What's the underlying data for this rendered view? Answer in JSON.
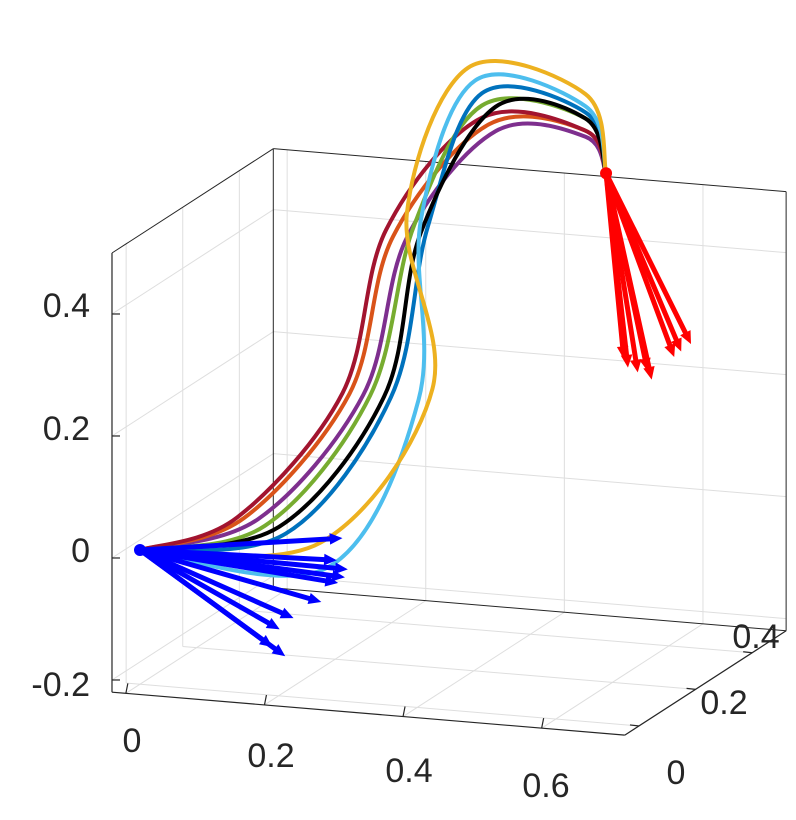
{
  "chart_data": {
    "type": "line3d",
    "title": "",
    "xlabel": "",
    "ylabel": "",
    "zlabel": "",
    "xlim": [
      -0.02,
      0.72
    ],
    "ylim": [
      -0.05,
      0.52
    ],
    "zlim": [
      -0.22,
      0.5
    ],
    "grid": true,
    "box": true,
    "x_ticks": [
      "0",
      "0.2",
      "0.4",
      "0.6"
    ],
    "y_ticks": [
      "0",
      "0.2",
      "0.4"
    ],
    "z_ticks": [
      "-0.2",
      "0",
      "0.2",
      "0.4"
    ],
    "x_tick_values": [
      0,
      0.2,
      0.4,
      0.6
    ],
    "y_tick_values": [
      0,
      0.2,
      0.4
    ],
    "z_tick_values": [
      -0.2,
      0,
      0.2,
      0.4
    ],
    "colors": {
      "start_arrows": "#0000ff",
      "end_arrows": "#ff0000",
      "trajectories": [
        "#000000",
        "#edb120",
        "#4dbeee",
        "#0072bd",
        "#77ac30",
        "#d95319",
        "#7e2f8e",
        "#a2142f"
      ]
    },
    "series": [
      {
        "color": "#7e2f8e",
        "points": [
          [
            0,
            0,
            0
          ],
          [
            0.15,
            0.05,
            0.05
          ],
          [
            0.22,
            0.25,
            0.2
          ],
          [
            0.23,
            0.38,
            0.42
          ],
          [
            0.35,
            0.4,
            0.6
          ],
          [
            0.5,
            0.35,
            0.62
          ],
          [
            0.55,
            0.3,
            0.58
          ]
        ]
      },
      {
        "color": "#d95319",
        "points": [
          [
            0,
            0,
            0
          ],
          [
            0.13,
            0.05,
            0.05
          ],
          [
            0.2,
            0.25,
            0.2
          ],
          [
            0.21,
            0.38,
            0.42
          ],
          [
            0.34,
            0.4,
            0.61
          ],
          [
            0.5,
            0.35,
            0.63
          ],
          [
            0.55,
            0.3,
            0.58
          ]
        ]
      },
      {
        "color": "#a2142f",
        "points": [
          [
            0,
            0,
            0
          ],
          [
            0.12,
            0.05,
            0.05
          ],
          [
            0.19,
            0.25,
            0.2
          ],
          [
            0.2,
            0.38,
            0.43
          ],
          [
            0.33,
            0.4,
            0.62
          ],
          [
            0.5,
            0.35,
            0.63
          ],
          [
            0.55,
            0.3,
            0.58
          ]
        ]
      },
      {
        "color": "#77ac30",
        "points": [
          [
            0,
            0,
            0
          ],
          [
            0.16,
            0.05,
            0.04
          ],
          [
            0.23,
            0.25,
            0.2
          ],
          [
            0.24,
            0.38,
            0.44
          ],
          [
            0.33,
            0.4,
            0.64
          ],
          [
            0.5,
            0.35,
            0.65
          ],
          [
            0.55,
            0.3,
            0.58
          ]
        ]
      },
      {
        "color": "#0072bd",
        "points": [
          [
            0,
            0,
            0
          ],
          [
            0.19,
            0.05,
            0.03
          ],
          [
            0.26,
            0.25,
            0.2
          ],
          [
            0.26,
            0.38,
            0.44
          ],
          [
            0.33,
            0.4,
            0.66
          ],
          [
            0.5,
            0.35,
            0.66
          ],
          [
            0.55,
            0.3,
            0.58
          ]
        ]
      },
      {
        "color": "#000000",
        "points": [
          [
            0,
            0,
            0
          ],
          [
            0.18,
            0.05,
            0.04
          ],
          [
            0.25,
            0.25,
            0.2
          ],
          [
            0.25,
            0.38,
            0.43
          ],
          [
            0.35,
            0.4,
            0.64
          ],
          [
            0.5,
            0.35,
            0.65
          ],
          [
            0.55,
            0.3,
            0.58
          ]
        ]
      },
      {
        "color": "#4dbeee",
        "points": [
          [
            0,
            0,
            0
          ],
          [
            0.25,
            0.05,
            -0.02
          ],
          [
            0.3,
            0.25,
            0.2
          ],
          [
            0.25,
            0.38,
            0.45
          ],
          [
            0.32,
            0.4,
            0.68
          ],
          [
            0.5,
            0.35,
            0.67
          ],
          [
            0.55,
            0.3,
            0.58
          ]
        ]
      },
      {
        "color": "#edb120",
        "points": [
          [
            0,
            0,
            0
          ],
          [
            0.24,
            0.05,
            0.02
          ],
          [
            0.32,
            0.25,
            0.22
          ],
          [
            0.23,
            0.38,
            0.46
          ],
          [
            0.31,
            0.4,
            0.7
          ],
          [
            0.5,
            0.35,
            0.69
          ],
          [
            0.55,
            0.3,
            0.58
          ]
        ]
      }
    ],
    "start_arrows": [
      {
        "from": [
          0,
          0,
          0
        ],
        "to": [
          0.27,
          0.05,
          0.03
        ]
      },
      {
        "from": [
          0,
          0,
          0
        ],
        "to": [
          0.27,
          0.03,
          0.0
        ]
      },
      {
        "from": [
          0,
          0,
          0
        ],
        "to": [
          0.29,
          0.02,
          -0.01
        ]
      },
      {
        "from": [
          0,
          0,
          0
        ],
        "to": [
          0.29,
          0.01,
          -0.02
        ]
      },
      {
        "from": [
          0,
          0,
          0
        ],
        "to": [
          0.28,
          0.01,
          -0.03
        ]
      },
      {
        "from": [
          0,
          0,
          0
        ],
        "to": [
          0.26,
          0.0,
          -0.06
        ]
      },
      {
        "from": [
          0,
          0,
          0
        ],
        "to": [
          0.22,
          0.0,
          -0.09
        ]
      },
      {
        "from": [
          0,
          0,
          0
        ],
        "to": [
          0.2,
          0.0,
          -0.11
        ]
      },
      {
        "from": [
          0,
          0,
          0
        ],
        "to": [
          0.19,
          0.0,
          -0.14
        ]
      },
      {
        "from": [
          0,
          0,
          0
        ],
        "to": [
          0.2,
          0.02,
          -0.16
        ]
      }
    ],
    "end_arrows": [
      {
        "from": [
          0.55,
          0.3,
          0.58
        ],
        "to": [
          0.68,
          0.28,
          0.32
        ]
      },
      {
        "from": [
          0.55,
          0.3,
          0.58
        ],
        "to": [
          0.67,
          0.27,
          0.31
        ]
      },
      {
        "from": [
          0.55,
          0.3,
          0.58
        ],
        "to": [
          0.66,
          0.27,
          0.3
        ]
      },
      {
        "from": [
          0.55,
          0.3,
          0.58
        ],
        "to": [
          0.63,
          0.25,
          0.28
        ]
      },
      {
        "from": [
          0.55,
          0.3,
          0.58
        ],
        "to": [
          0.64,
          0.24,
          0.27
        ]
      },
      {
        "from": [
          0.55,
          0.3,
          0.58
        ],
        "to": [
          0.62,
          0.24,
          0.28
        ]
      },
      {
        "from": [
          0.55,
          0.3,
          0.58
        ],
        "to": [
          0.6,
          0.24,
          0.3
        ]
      },
      {
        "from": [
          0.55,
          0.3,
          0.58
        ],
        "to": [
          0.61,
          0.23,
          0.29
        ]
      }
    ]
  }
}
